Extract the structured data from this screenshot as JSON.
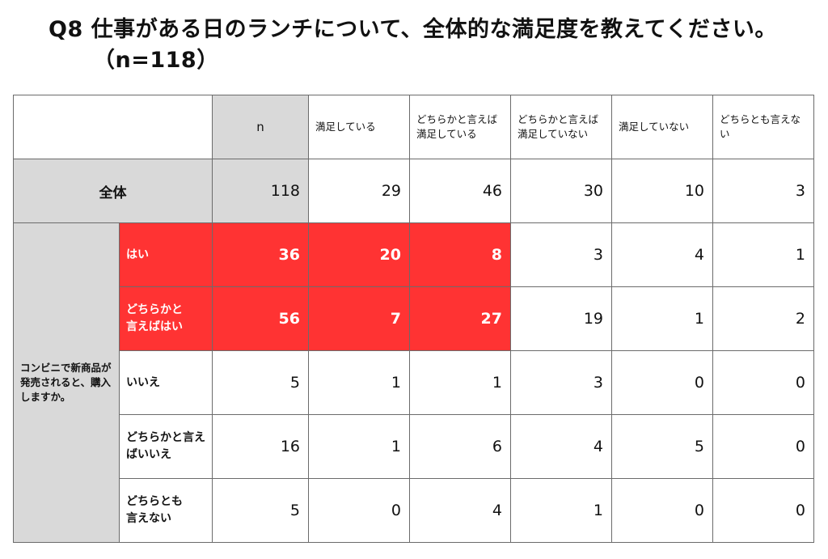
{
  "title": {
    "line1": "Q8  仕事がある日のランチについて、全体的な満足度を教えてください。",
    "line2": "（n=118）"
  },
  "table": {
    "headers": [
      "n",
      "満足している",
      "どちらかと言えば満足している",
      "どちらかと言えば満足していない",
      "満足していない",
      "どちらとも言えない"
    ],
    "total": {
      "label": "全体",
      "values": [
        "118",
        "29",
        "46",
        "30",
        "10",
        "3"
      ]
    },
    "group_label": "コンビニで新商品が発売されると、購入しますか。",
    "rows": [
      {
        "label": "はい",
        "values": [
          "36",
          "20",
          "8",
          "3",
          "4",
          "1"
        ]
      },
      {
        "label": "どちらかと言えばはい",
        "values": [
          "56",
          "7",
          "27",
          "19",
          "1",
          "2"
        ]
      },
      {
        "label": "いいえ",
        "values": [
          "5",
          "1",
          "1",
          "3",
          "0",
          "0"
        ]
      },
      {
        "label": "どちらかと言えばいいえ",
        "values": [
          "16",
          "1",
          "6",
          "4",
          "5",
          "0"
        ]
      },
      {
        "label": "どちらとも言えない",
        "values": [
          "5",
          "0",
          "4",
          "1",
          "0",
          "0"
        ]
      }
    ]
  },
  "colors": {
    "highlight": "#ff3333",
    "header_gray": "#d9d9d9",
    "border": "#6b6b6b"
  }
}
